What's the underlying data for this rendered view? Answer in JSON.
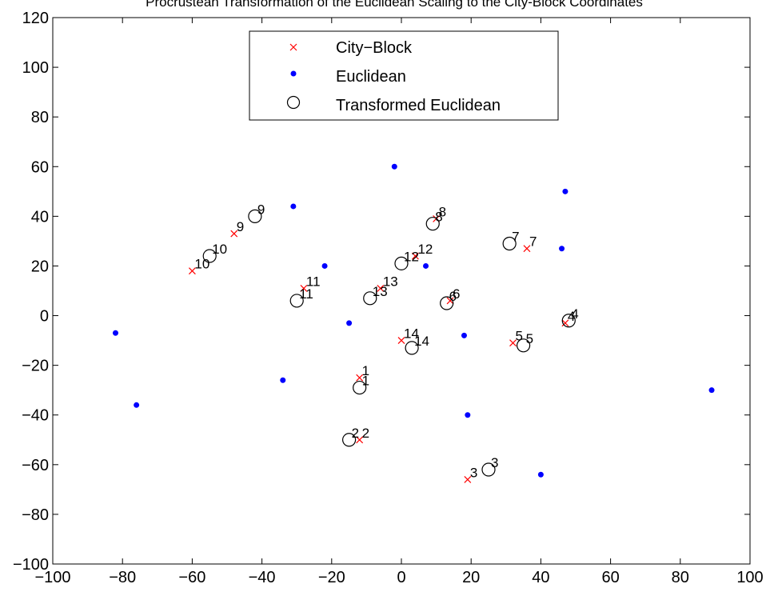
{
  "chart_data": {
    "type": "scatter",
    "title": "Procrustean Transformation of the Euclidean Scaling to the City-Block Coordinates",
    "xlabel": "",
    "ylabel": "",
    "xlim": [
      -100,
      100
    ],
    "ylim": [
      -100,
      120
    ],
    "xticks": [
      "−100",
      "−80",
      "−60",
      "−40",
      "−20",
      "0",
      "20",
      "40",
      "60",
      "80",
      "100"
    ],
    "yticks": [
      "−100",
      "−80",
      "−60",
      "−40",
      "−20",
      "0",
      "20",
      "40",
      "60",
      "80",
      "100",
      "120"
    ],
    "grid": false,
    "legend_position": "top-center",
    "legend": [
      "City−Block",
      "Euclidean",
      "Transformed Euclidean"
    ],
    "colors": {
      "city_block": "#ff0000",
      "euclidean": "#0000ff",
      "transformed": "#000000"
    },
    "series": [
      {
        "name": "City−Block",
        "marker": "x",
        "points": [
          {
            "label": "1",
            "x": -12,
            "y": -25
          },
          {
            "label": "2",
            "x": -12,
            "y": -50
          },
          {
            "label": "3",
            "x": 19,
            "y": -66
          },
          {
            "label": "4",
            "x": 47,
            "y": -3
          },
          {
            "label": "5",
            "x": 32,
            "y": -11
          },
          {
            "label": "6",
            "x": 14,
            "y": 6
          },
          {
            "label": "7",
            "x": 36,
            "y": 27
          },
          {
            "label": "8",
            "x": 10,
            "y": 39
          },
          {
            "label": "9",
            "x": -48,
            "y": 33
          },
          {
            "label": "10",
            "x": -60,
            "y": 18
          },
          {
            "label": "11",
            "x": -28,
            "y": 11
          },
          {
            "label": "12",
            "x": 4,
            "y": 24
          },
          {
            "label": "13",
            "x": -6,
            "y": 11
          },
          {
            "label": "14",
            "x": 0,
            "y": -10
          }
        ]
      },
      {
        "name": "Euclidean",
        "marker": "dot",
        "points": [
          {
            "x": -82,
            "y": -7
          },
          {
            "x": -76,
            "y": -36
          },
          {
            "x": -34,
            "y": -26
          },
          {
            "x": -31,
            "y": 44
          },
          {
            "x": -22,
            "y": 20
          },
          {
            "x": -15,
            "y": -3
          },
          {
            "x": -2,
            "y": 60
          },
          {
            "x": 7,
            "y": 20
          },
          {
            "x": 18,
            "y": -8
          },
          {
            "x": 19,
            "y": -40
          },
          {
            "x": 40,
            "y": -64
          },
          {
            "x": 46,
            "y": 27
          },
          {
            "x": 47,
            "y": 50
          },
          {
            "x": 89,
            "y": -30
          }
        ]
      },
      {
        "name": "Transformed Euclidean",
        "marker": "circle",
        "points": [
          {
            "label": "1",
            "x": -12,
            "y": -29
          },
          {
            "label": "2",
            "x": -15,
            "y": -50
          },
          {
            "label": "3",
            "x": 25,
            "y": -62
          },
          {
            "label": "4",
            "x": 48,
            "y": -2
          },
          {
            "label": "5",
            "x": 35,
            "y": -12
          },
          {
            "label": "6",
            "x": 13,
            "y": 5
          },
          {
            "label": "7",
            "x": 31,
            "y": 29
          },
          {
            "label": "8",
            "x": 9,
            "y": 37
          },
          {
            "label": "9",
            "x": -42,
            "y": 40
          },
          {
            "label": "10",
            "x": -55,
            "y": 24
          },
          {
            "label": "11",
            "x": -30,
            "y": 6
          },
          {
            "label": "12",
            "x": 0,
            "y": 21
          },
          {
            "label": "13",
            "x": -9,
            "y": 7
          },
          {
            "label": "14",
            "x": 3,
            "y": -13
          }
        ]
      }
    ]
  }
}
